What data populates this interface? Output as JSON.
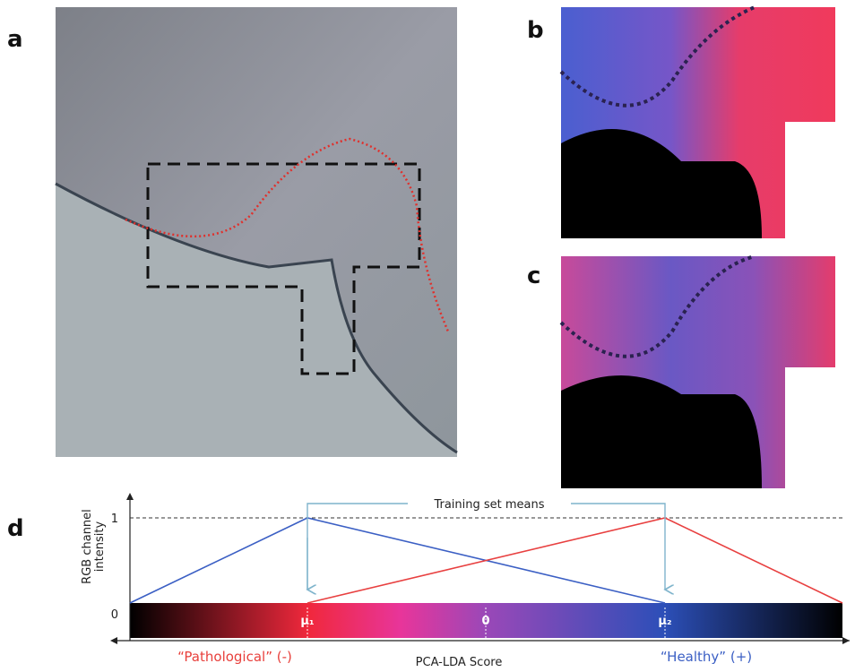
{
  "panels": {
    "a": "a",
    "b": "b",
    "c": "c",
    "d": "d"
  },
  "plot": {
    "y_axis_label_line1": "RGB channel",
    "y_axis_label_line2": "intensity",
    "tick_top": "1",
    "tick_bottom": "0",
    "bracket_label": "Training set means",
    "mu1": "μ₁",
    "zero": "0",
    "mu2": "μ₂",
    "left_label": "“Pathological” (-)",
    "x_axis_label": "PCA-LDA Score",
    "right_label": "“Healthy” (+)"
  }
}
